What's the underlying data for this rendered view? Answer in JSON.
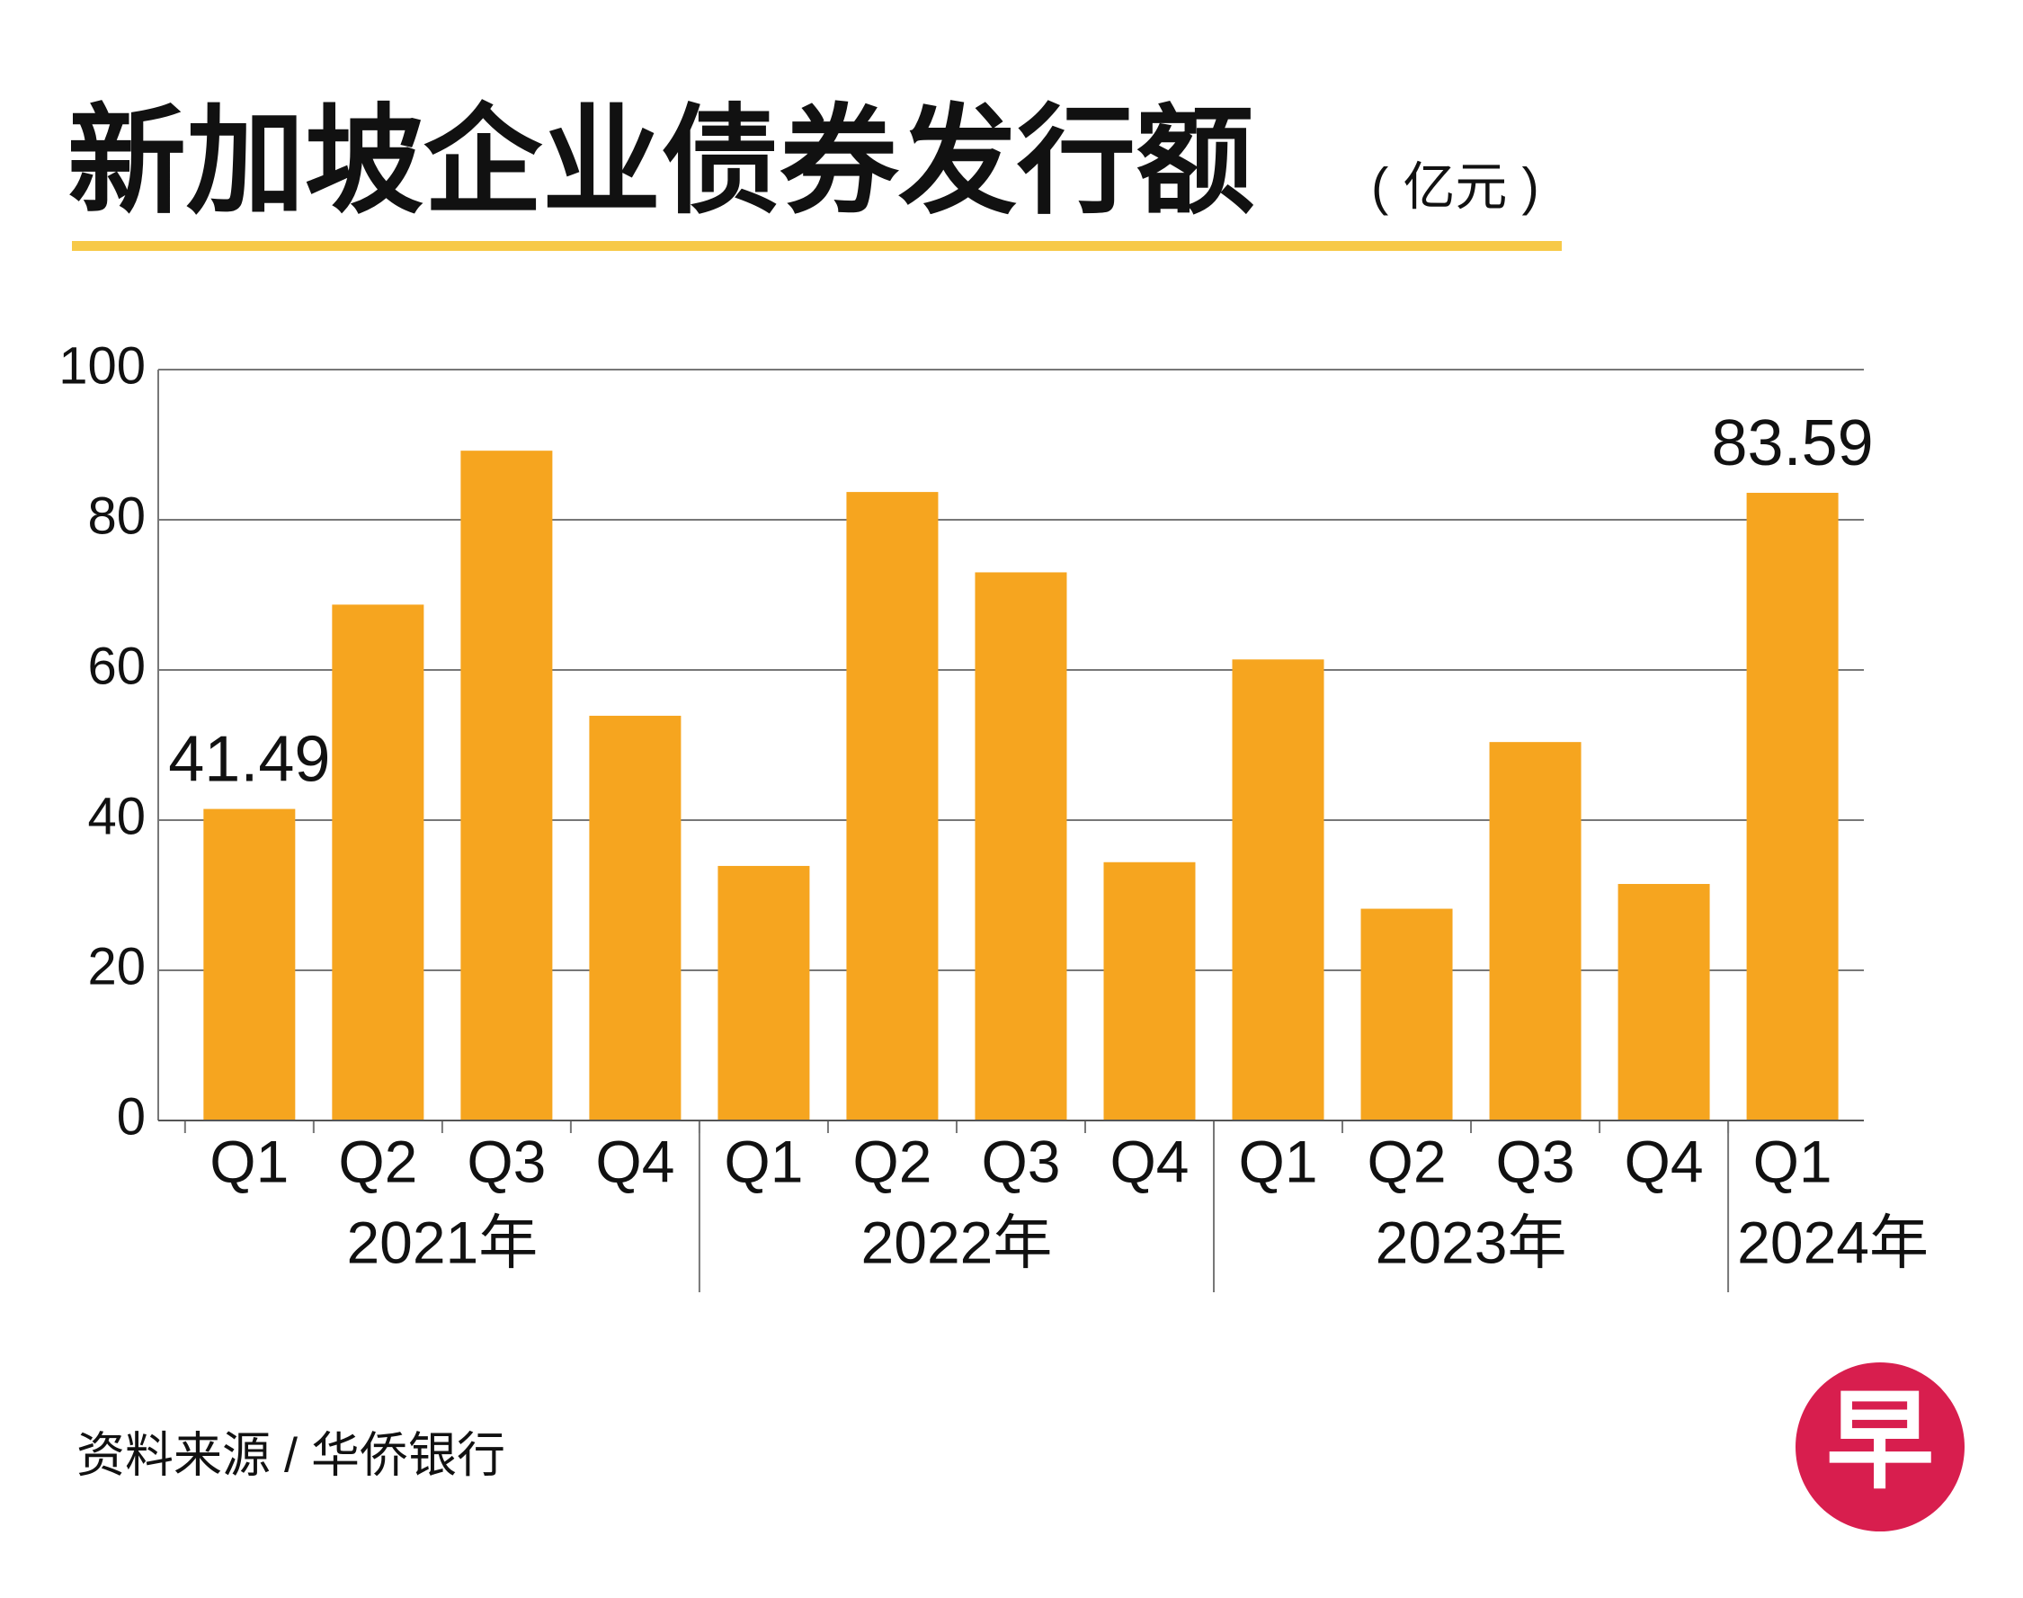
{
  "chart_data": {
    "type": "bar",
    "title": "新加坡企业债券发行额",
    "unit": "( 亿元 )",
    "groups": [
      {
        "name": "2021年",
        "categories": [
          "Q1",
          "Q2",
          "Q3",
          "Q4"
        ]
      },
      {
        "name": "2022年",
        "categories": [
          "Q1",
          "Q2",
          "Q3",
          "Q4"
        ]
      },
      {
        "name": "2023年",
        "categories": [
          "Q1",
          "Q2",
          "Q3",
          "Q4"
        ]
      },
      {
        "name": "2024年",
        "categories": [
          "Q1"
        ]
      }
    ],
    "values": [
      41.49,
      68.7,
      89.2,
      53.9,
      33.9,
      83.7,
      73.0,
      34.4,
      61.4,
      28.2,
      50.4,
      31.5,
      83.59
    ],
    "value_labels": [
      "41.49",
      null,
      null,
      null,
      null,
      null,
      null,
      null,
      null,
      null,
      null,
      null,
      "83.59"
    ],
    "color": "#f6a51f",
    "ylim": [
      0,
      100
    ],
    "yticks": [
      0,
      20,
      40,
      60,
      80,
      100
    ],
    "grid": true,
    "source": "资料来源 / 华侨银行",
    "logo": "早"
  }
}
